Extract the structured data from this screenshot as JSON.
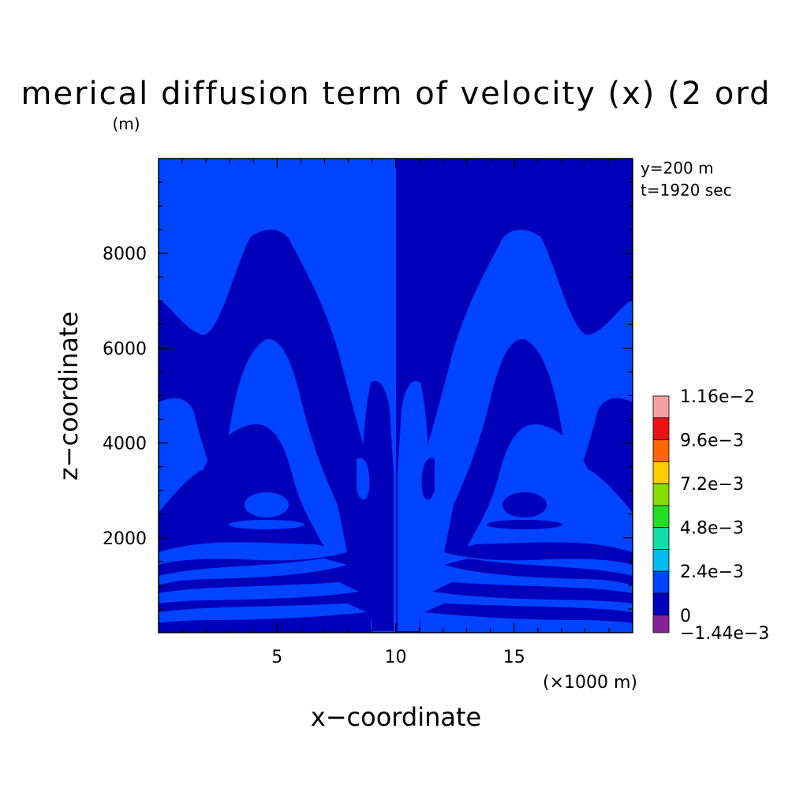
{
  "chart_data": {
    "type": "heatmap",
    "title": "merical diffusion term of velocity (x) (2 ord",
    "ylabel_unit": "(m)",
    "xlabel": "x−coordinate",
    "ylabel": "z−coordinate",
    "xunit": "(×1000 m)",
    "annotations": [
      "y=200 m",
      "t=1920 sec"
    ],
    "xlim": [
      0,
      20
    ],
    "ylim": [
      0,
      10000
    ],
    "xticks": [
      5,
      10,
      15
    ],
    "xtick_labels": [
      "5",
      "10",
      "15"
    ],
    "yticks": [
      2000,
      4000,
      6000,
      8000
    ],
    "ytick_labels": [
      "2000",
      "4000",
      "6000",
      "8000"
    ],
    "colorbar": {
      "labels": [
        "1.16e−2",
        "9.6e−3",
        "7.2e−3",
        "4.8e−3",
        "2.4e−3",
        "0",
        "−1.44e−3"
      ],
      "colors": [
        "#f7a0a0",
        "#ee1111",
        "#ff6600",
        "#ffcc00",
        "#88dd00",
        "#22dd22",
        "#11ddaa",
        "#00bbee",
        "#0044ff",
        "#0000bb",
        "#882299"
      ]
    },
    "field_colors": {
      "positive_small": "#0044ff",
      "negative_small": "#0000bb"
    },
    "grid": false
  }
}
